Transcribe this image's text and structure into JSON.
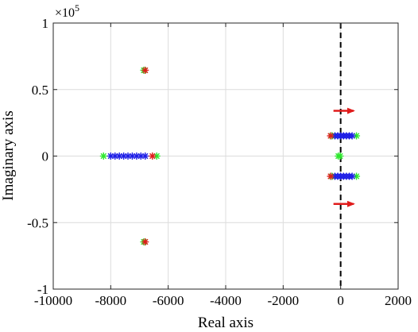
{
  "chart_data": {
    "type": "scatter",
    "xlabel": "Real axis",
    "ylabel": "Imaginary axis",
    "xlim": [
      -10000,
      2000
    ],
    "ylim": [
      -1,
      1
    ],
    "y_exponent_label": "×10",
    "y_exponent_power": "5",
    "xticks": [
      -10000,
      -8000,
      -6000,
      -4000,
      -2000,
      0,
      2000
    ],
    "xtick_labels": [
      "-10000",
      "-8000",
      "-6000",
      "-4000",
      "-2000",
      "0",
      "2000"
    ],
    "yticks": [
      -1,
      -0.5,
      0,
      0.5,
      1
    ],
    "ytick_labels": [
      "-1",
      "-0.5",
      "0",
      "0.5",
      "1"
    ],
    "grid": true,
    "marker": "asterisk",
    "reference_line": {
      "x": 0,
      "style": "dashed",
      "color": "#000000"
    },
    "series": [
      {
        "color": "#2ee82e",
        "points": [
          [
            -6850,
            0.645
          ],
          [
            -6850,
            -0.645
          ],
          [
            -8250,
            0
          ],
          [
            -6400,
            0
          ],
          [
            -300,
            0.152
          ],
          [
            550,
            0.152
          ],
          [
            -300,
            -0.152
          ],
          [
            550,
            -0.152
          ],
          [
            -80,
            0
          ],
          [
            -20,
            0
          ]
        ]
      },
      {
        "color": "#1f1fe6",
        "points": [
          [
            -8000,
            0
          ],
          [
            -7850,
            0
          ],
          [
            -7700,
            0
          ],
          [
            -7550,
            0
          ],
          [
            -7400,
            0
          ],
          [
            -7250,
            0
          ],
          [
            -7100,
            0
          ],
          [
            -6950,
            0
          ],
          [
            -6800,
            0
          ],
          [
            -200,
            0.152
          ],
          [
            -100,
            0.152
          ],
          [
            0,
            0.152
          ],
          [
            100,
            0.152
          ],
          [
            200,
            0.152
          ],
          [
            300,
            0.152
          ],
          [
            400,
            0.152
          ],
          [
            -200,
            -0.152
          ],
          [
            -100,
            -0.152
          ],
          [
            0,
            -0.152
          ],
          [
            100,
            -0.152
          ],
          [
            200,
            -0.152
          ],
          [
            300,
            -0.152
          ],
          [
            400,
            -0.152
          ]
        ]
      },
      {
        "color": "#e01b1b",
        "points": [
          [
            -6800,
            0.645
          ],
          [
            -6800,
            -0.645
          ],
          [
            -6550,
            0
          ],
          [
            -350,
            0.152
          ],
          [
            -350,
            -0.152
          ]
        ]
      }
    ],
    "arrows": [
      {
        "from": [
          -250,
          0.34
        ],
        "to": [
          450,
          0.34
        ],
        "color": "#e01b1b"
      },
      {
        "from": [
          -250,
          -0.36
        ],
        "to": [
          450,
          -0.36
        ],
        "color": "#e01b1b"
      }
    ]
  }
}
